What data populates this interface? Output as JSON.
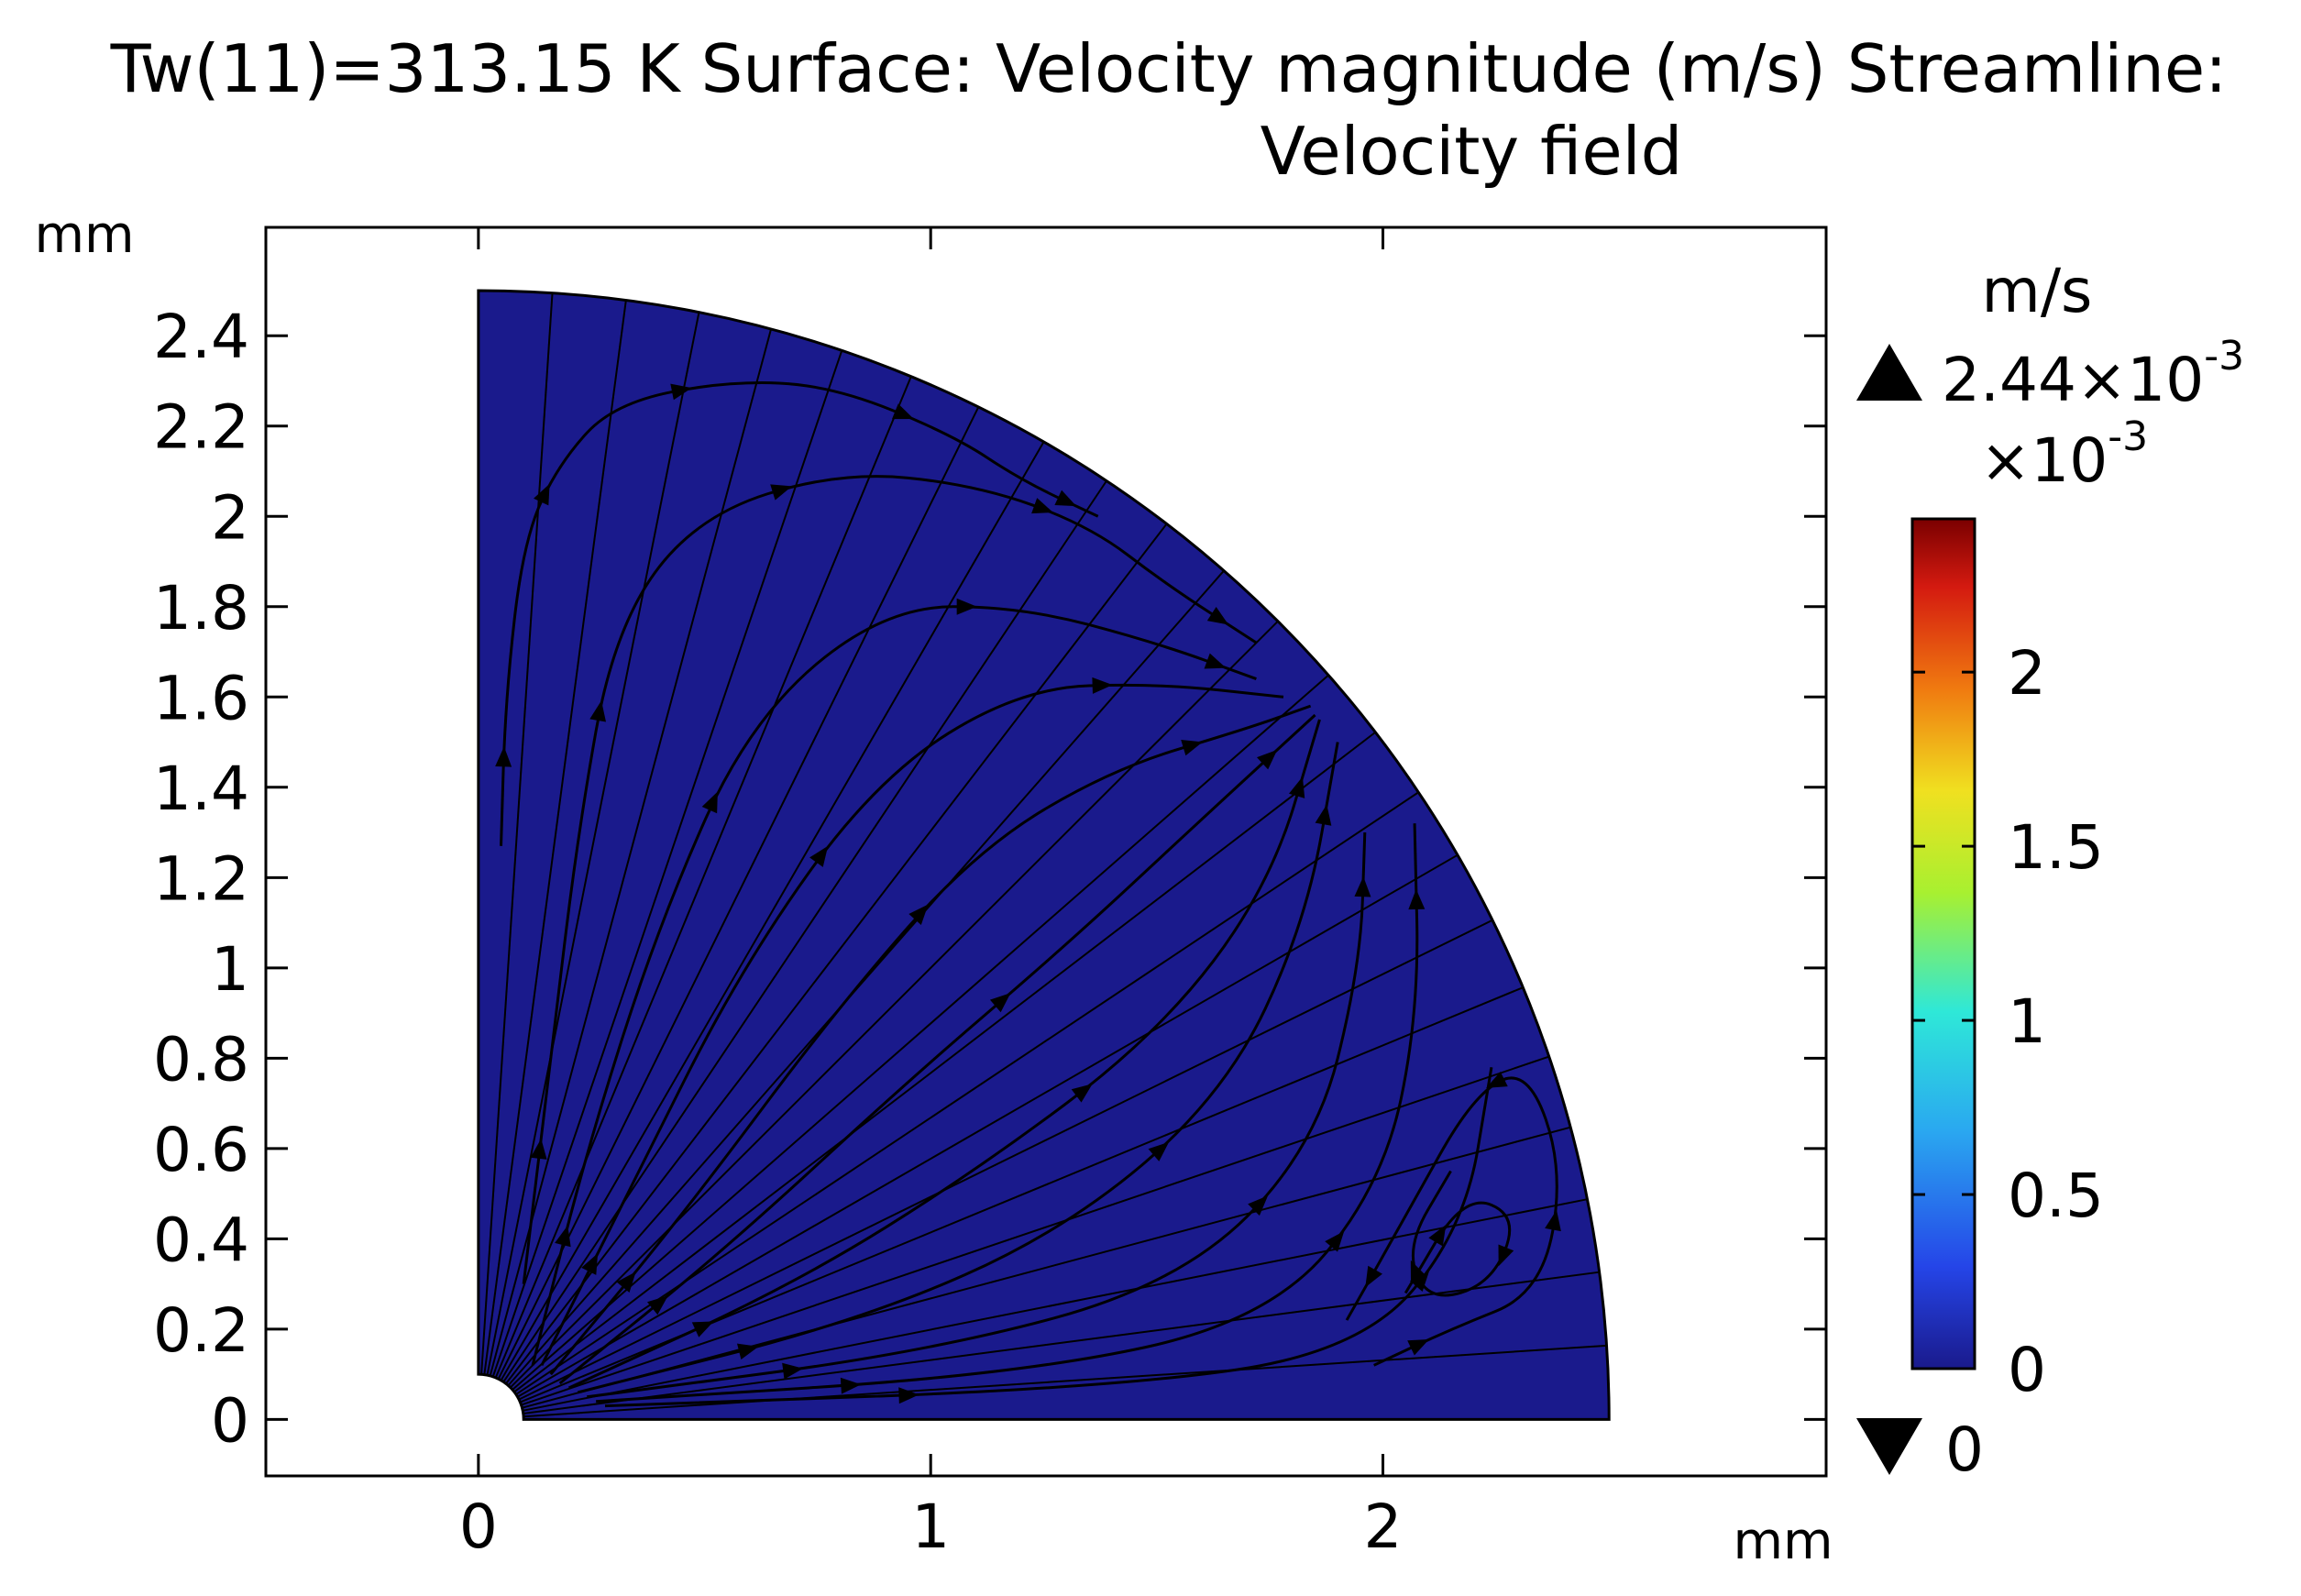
{
  "title": {
    "line1": "Tw(11)=313.15 K Surface: Velocity magnitude (m/s)  Streamline:",
    "line2": "Velocity field"
  },
  "colors": {
    "surface": "#1a1a8c",
    "streamline": "#000000",
    "frame": "#000000"
  },
  "colorbar": {
    "unit": "m/s",
    "max_mantissa": "2.44×10",
    "max_exponent": "-3",
    "scale_prefix": "×10",
    "scale_exponent": "-3",
    "min_label": "0",
    "tick_labels": [
      "0",
      "0.5",
      "1",
      "1.5",
      "2"
    ],
    "ticks": [
      0,
      0.5,
      1,
      1.5,
      2
    ],
    "range": [
      0,
      2.44
    ],
    "colormap": "rainbow"
  },
  "chart_data": {
    "type": "heatmap",
    "title": "Tw(11)=313.15 K Surface: Velocity magnitude (m/s)  Streamline: Velocity field",
    "x_unit": "mm",
    "y_unit": "mm",
    "xlim": [
      -0.47,
      2.98
    ],
    "ylim": [
      -0.125,
      2.64
    ],
    "x_ticks": [
      0,
      1,
      2
    ],
    "x_tick_labels": [
      "0",
      "1",
      "2"
    ],
    "y_ticks": [
      0,
      0.2,
      0.4,
      0.6,
      0.8,
      1,
      1.2,
      1.4,
      1.6,
      1.8,
      2,
      2.2,
      2.4
    ],
    "y_tick_labels": [
      "0",
      "0.2",
      "0.4",
      "0.6",
      "0.8",
      "1",
      "1.2",
      "1.4",
      "1.6",
      "1.8",
      "2",
      "2.2",
      "2.4"
    ],
    "domain": {
      "shape": "quarter-annulus",
      "outer_radius": 2.5,
      "inner_radius": 0.1,
      "center": [
        0,
        0
      ]
    },
    "surface_value_range": [
      0,
      0.00244
    ],
    "grid": false,
    "legend": "colorbar-right",
    "streamlines": [
      {
        "points": [
          [
            0.05,
            1.27
          ],
          [
            0.06,
            1.6
          ],
          [
            0.1,
            1.95
          ],
          [
            0.18,
            2.12
          ],
          [
            0.3,
            2.25
          ],
          [
            0.55,
            2.3
          ],
          [
            0.78,
            2.29
          ],
          [
            1.05,
            2.18
          ],
          [
            1.2,
            2.08
          ],
          [
            1.37,
            2.0
          ]
        ]
      },
      {
        "points": [
          [
            0.1,
            0.3
          ],
          [
            0.16,
            0.8
          ],
          [
            0.22,
            1.3
          ],
          [
            0.3,
            1.75
          ],
          [
            0.48,
            2.0
          ],
          [
            0.8,
            2.1
          ],
          [
            1.1,
            2.07
          ],
          [
            1.35,
            1.98
          ],
          [
            1.52,
            1.85
          ],
          [
            1.72,
            1.72
          ]
        ]
      },
      {
        "points": [
          [
            0.12,
            0.12
          ],
          [
            0.24,
            0.6
          ],
          [
            0.4,
            1.1
          ],
          [
            0.6,
            1.55
          ],
          [
            0.9,
            1.8
          ],
          [
            1.2,
            1.8
          ],
          [
            1.5,
            1.72
          ],
          [
            1.72,
            1.64
          ]
        ]
      },
      {
        "points": [
          [
            0.14,
            0.12
          ],
          [
            0.33,
            0.5
          ],
          [
            0.58,
            1.0
          ],
          [
            0.88,
            1.42
          ],
          [
            1.2,
            1.62
          ],
          [
            1.5,
            1.63
          ],
          [
            1.78,
            1.6
          ]
        ]
      },
      {
        "points": [
          [
            0.16,
            0.1
          ],
          [
            0.45,
            0.45
          ],
          [
            0.8,
            0.92
          ],
          [
            1.1,
            1.26
          ],
          [
            1.4,
            1.44
          ],
          [
            1.7,
            1.53
          ],
          [
            1.84,
            1.58
          ]
        ]
      },
      {
        "points": [
          [
            0.18,
            0.08
          ],
          [
            0.55,
            0.38
          ],
          [
            0.95,
            0.75
          ],
          [
            1.3,
            1.05
          ],
          [
            1.6,
            1.33
          ],
          [
            1.85,
            1.56
          ]
        ]
      },
      {
        "points": [
          [
            0.2,
            0.07
          ],
          [
            0.7,
            0.3
          ],
          [
            1.1,
            0.55
          ],
          [
            1.5,
            0.85
          ],
          [
            1.75,
            1.18
          ],
          [
            1.86,
            1.55
          ]
        ]
      },
      {
        "points": [
          [
            0.22,
            0.06
          ],
          [
            0.85,
            0.22
          ],
          [
            1.3,
            0.42
          ],
          [
            1.65,
            0.72
          ],
          [
            1.83,
            1.1
          ],
          [
            1.9,
            1.5
          ]
        ]
      },
      {
        "points": [
          [
            0.24,
            0.05
          ],
          [
            1.0,
            0.15
          ],
          [
            1.55,
            0.3
          ],
          [
            1.85,
            0.6
          ],
          [
            1.95,
            1.0
          ],
          [
            1.96,
            1.3
          ]
        ]
      },
      {
        "points": [
          [
            0.26,
            0.04
          ],
          [
            1.2,
            0.1
          ],
          [
            1.75,
            0.22
          ],
          [
            2.0,
            0.52
          ],
          [
            2.08,
            0.9
          ],
          [
            2.07,
            1.32
          ]
        ]
      },
      {
        "points": [
          [
            0.28,
            0.03
          ],
          [
            1.4,
            0.07
          ],
          [
            1.95,
            0.15
          ],
          [
            2.18,
            0.42
          ],
          [
            2.24,
            0.78
          ]
        ]
      },
      {
        "points": [
          [
            2.05,
            0.28
          ],
          [
            2.18,
            0.5
          ],
          [
            2.3,
            0.45
          ],
          [
            2.24,
            0.3
          ],
          [
            2.1,
            0.26
          ],
          [
            2.05,
            0.38
          ],
          [
            2.15,
            0.55
          ]
        ]
      },
      {
        "points": [
          [
            1.98,
            0.12
          ],
          [
            2.15,
            0.2
          ],
          [
            2.35,
            0.28
          ],
          [
            2.4,
            0.55
          ],
          [
            2.32,
            0.78
          ],
          [
            2.2,
            0.72
          ],
          [
            2.05,
            0.45
          ],
          [
            1.92,
            0.22
          ]
        ]
      }
    ]
  }
}
